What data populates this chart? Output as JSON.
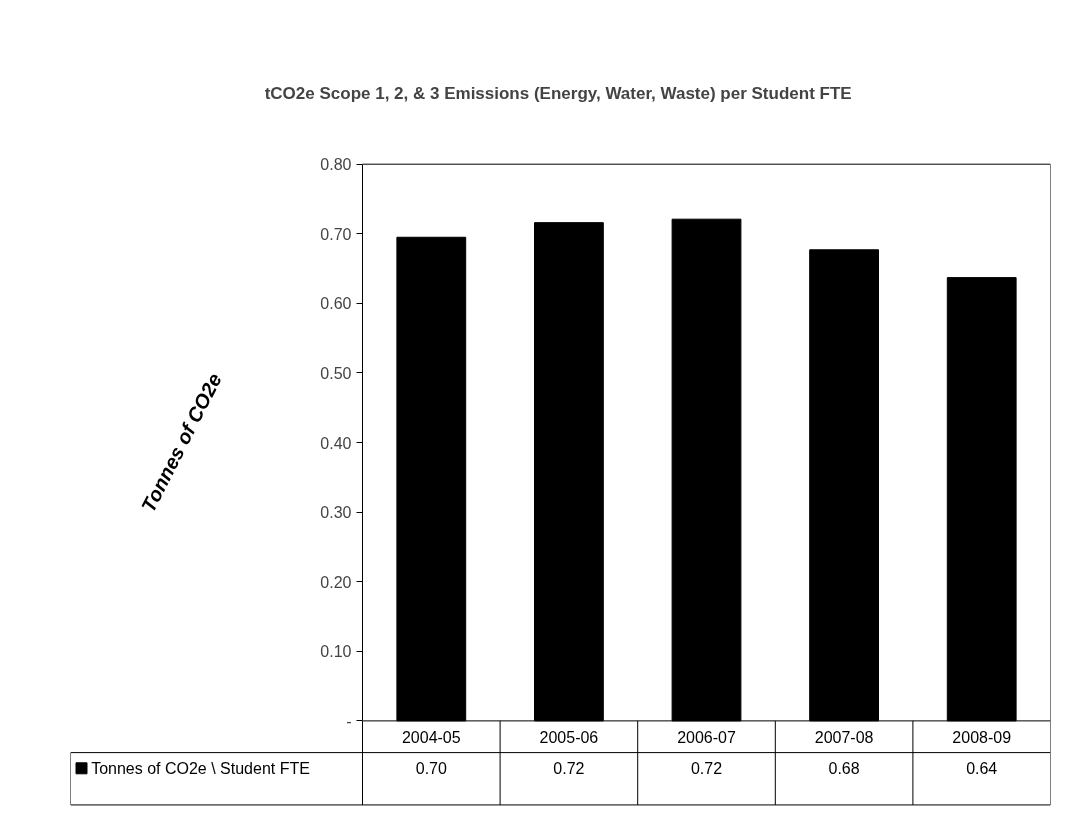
{
  "chart_data": {
    "type": "bar",
    "title": "tCO2e Scope 1, 2, & 3 Emissions (Energy, Water, Waste)  per Student FTE",
    "ylabel": "Tonnes of CO2e",
    "categories": [
      "2004-05",
      "2005-06",
      "2006-07",
      "2007-08",
      "2008-09"
    ],
    "series": [
      {
        "name": "Tonnes of CO2e \\ Student FTE",
        "color": "#000000",
        "values": [
          0.695,
          0.716,
          0.721,
          0.677,
          0.637
        ],
        "value_labels": [
          "0.70",
          "0.72",
          "0.72",
          "0.68",
          "0.64"
        ]
      }
    ],
    "ylim": [
      0,
      0.8
    ],
    "yticks": [
      {
        "value": 0,
        "label": "-"
      },
      {
        "value": 0.1,
        "label": "0.10"
      },
      {
        "value": 0.2,
        "label": "0.20"
      },
      {
        "value": 0.3,
        "label": "0.30"
      },
      {
        "value": 0.4,
        "label": "0.40"
      },
      {
        "value": 0.5,
        "label": "0.50"
      },
      {
        "value": 0.6,
        "label": "0.60"
      },
      {
        "value": 0.7,
        "label": "0.70"
      },
      {
        "value": 0.8,
        "label": "0.80"
      }
    ]
  }
}
